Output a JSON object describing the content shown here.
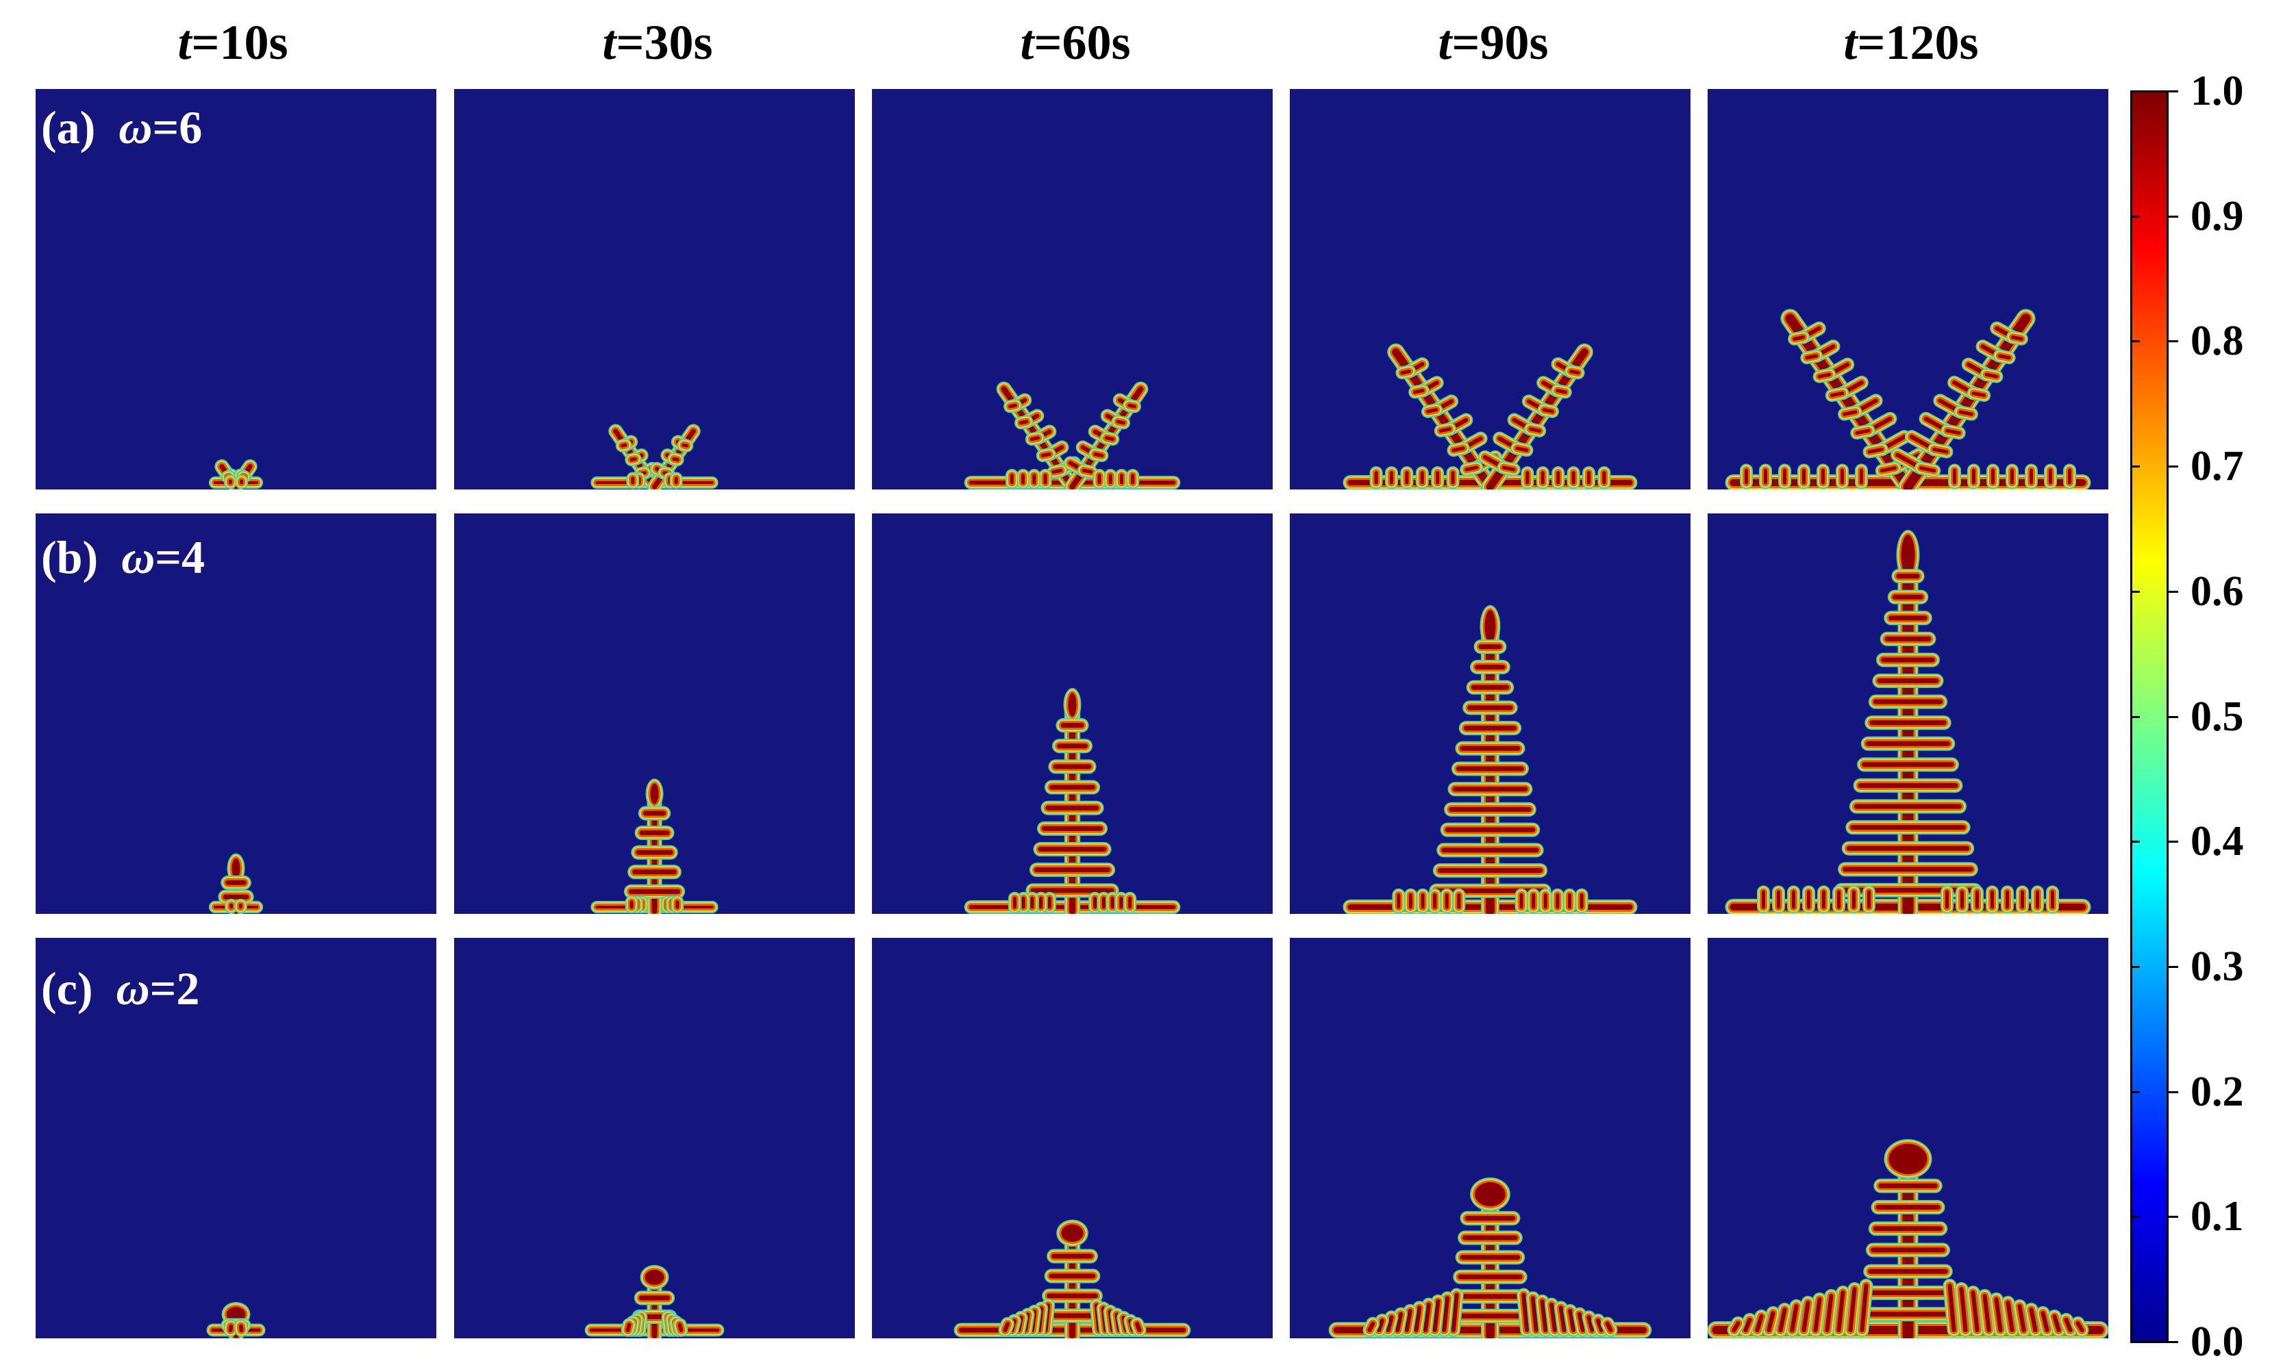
{
  "columns": [
    {
      "var": "t",
      "value": "=10s"
    },
    {
      "var": "t",
      "value": "=30s"
    },
    {
      "var": "t",
      "value": "=60s"
    },
    {
      "var": "t",
      "value": "=90s"
    },
    {
      "var": "t",
      "value": "=120s"
    }
  ],
  "rows": [
    {
      "tag": "(a)",
      "var": "ω",
      "value": "=6"
    },
    {
      "tag": "(b)",
      "var": "ω",
      "value": "=4"
    },
    {
      "tag": "(c)",
      "var": "ω",
      "value": "=2"
    }
  ],
  "colorbar": {
    "ticks": [
      "1.0",
      "0.9",
      "0.8",
      "0.7",
      "0.6",
      "0.5",
      "0.4",
      "0.3",
      "0.2",
      "0.1",
      "0.0"
    ],
    "colors": [
      "#7f0000",
      "#ff0000",
      "#ff7f00",
      "#ffff00",
      "#7fff7f",
      "#00ffff",
      "#007fff",
      "#0000ff",
      "#00008f"
    ]
  },
  "colors": {
    "background_field": "#15157e",
    "dendrite_core": "#8b0000",
    "dendrite_mid": "#f06000",
    "dendrite_edge": "#e8e000",
    "dendrite_halo": "#40d0d0"
  }
}
